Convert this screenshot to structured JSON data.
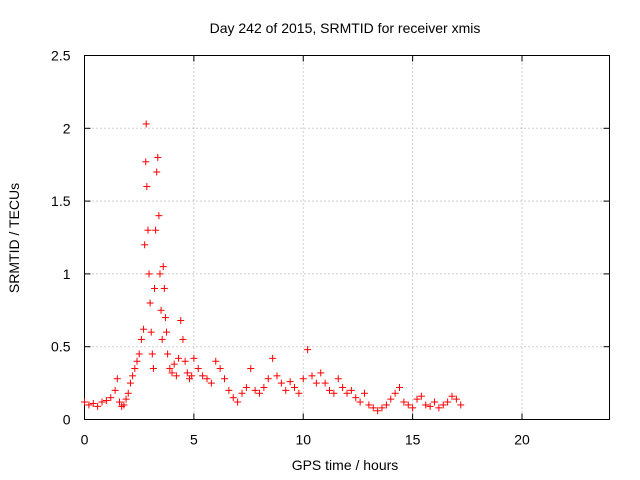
{
  "chart_data": {
    "type": "scatter",
    "title": "Day 242 of 2015, SRMTID for receiver xmis",
    "xlabel": "GPS time / hours",
    "ylabel": "SRMTID / TECUs",
    "xlim": [
      0,
      24
    ],
    "ylim": [
      0,
      2.5
    ],
    "xticks": [
      0,
      5,
      10,
      15,
      20
    ],
    "xtick_labels": [
      "0",
      "5",
      "10",
      "15",
      "20"
    ],
    "yticks": [
      0,
      0.5,
      1,
      1.5,
      2,
      2.5
    ],
    "ytick_labels": [
      "0",
      "0.5",
      "1",
      "1.5",
      "2",
      "2.5"
    ],
    "grid": true,
    "marker": "+",
    "series": [
      {
        "name": "SRMTID",
        "color": "#ff0000",
        "x": [
          0.0,
          0.2,
          0.4,
          0.6,
          0.8,
          1.0,
          1.2,
          1.4,
          1.5,
          1.6,
          1.7,
          1.8,
          1.9,
          2.0,
          2.1,
          2.2,
          2.3,
          2.4,
          2.5,
          2.6,
          2.7,
          2.75,
          2.8,
          2.82,
          2.85,
          2.9,
          2.95,
          3.0,
          3.05,
          3.1,
          3.15,
          3.2,
          3.25,
          3.3,
          3.35,
          3.4,
          3.45,
          3.5,
          3.55,
          3.6,
          3.65,
          3.7,
          3.75,
          3.8,
          3.9,
          4.0,
          4.1,
          4.2,
          4.3,
          4.4,
          4.5,
          4.6,
          4.7,
          4.8,
          4.9,
          5.0,
          5.2,
          5.4,
          5.6,
          5.8,
          6.0,
          6.2,
          6.4,
          6.6,
          6.8,
          7.0,
          7.2,
          7.4,
          7.6,
          7.8,
          8.0,
          8.2,
          8.4,
          8.6,
          8.8,
          9.0,
          9.2,
          9.4,
          9.6,
          9.8,
          10.0,
          10.2,
          10.4,
          10.6,
          10.8,
          11.0,
          11.2,
          11.4,
          11.6,
          11.8,
          12.0,
          12.2,
          12.4,
          12.6,
          12.8,
          13.0,
          13.2,
          13.4,
          13.6,
          13.8,
          14.0,
          14.2,
          14.4,
          14.6,
          14.8,
          15.0,
          15.2,
          15.4,
          15.6,
          15.8,
          16.0,
          16.2,
          16.4,
          16.6,
          16.8,
          17.0,
          17.2
        ],
        "y": [
          0.12,
          0.1,
          0.11,
          0.09,
          0.12,
          0.13,
          0.15,
          0.2,
          0.28,
          0.12,
          0.09,
          0.1,
          0.14,
          0.18,
          0.25,
          0.3,
          0.35,
          0.4,
          0.45,
          0.55,
          0.62,
          1.2,
          1.77,
          2.03,
          1.6,
          1.3,
          1.0,
          0.8,
          0.6,
          0.45,
          0.35,
          0.9,
          1.3,
          1.7,
          1.8,
          1.4,
          1.0,
          0.75,
          0.55,
          1.05,
          0.9,
          0.7,
          0.6,
          0.45,
          0.35,
          0.32,
          0.38,
          0.3,
          0.42,
          0.68,
          0.55,
          0.4,
          0.32,
          0.28,
          0.3,
          0.42,
          0.35,
          0.3,
          0.28,
          0.25,
          0.4,
          0.35,
          0.28,
          0.2,
          0.15,
          0.12,
          0.18,
          0.22,
          0.35,
          0.2,
          0.18,
          0.22,
          0.28,
          0.42,
          0.3,
          0.25,
          0.2,
          0.26,
          0.22,
          0.18,
          0.28,
          0.48,
          0.3,
          0.25,
          0.32,
          0.25,
          0.2,
          0.18,
          0.28,
          0.22,
          0.18,
          0.2,
          0.15,
          0.12,
          0.18,
          0.1,
          0.08,
          0.06,
          0.08,
          0.1,
          0.14,
          0.18,
          0.22,
          0.12,
          0.1,
          0.08,
          0.14,
          0.16,
          0.1,
          0.09,
          0.12,
          0.08,
          0.1,
          0.12,
          0.16,
          0.14,
          0.1
        ]
      }
    ]
  }
}
